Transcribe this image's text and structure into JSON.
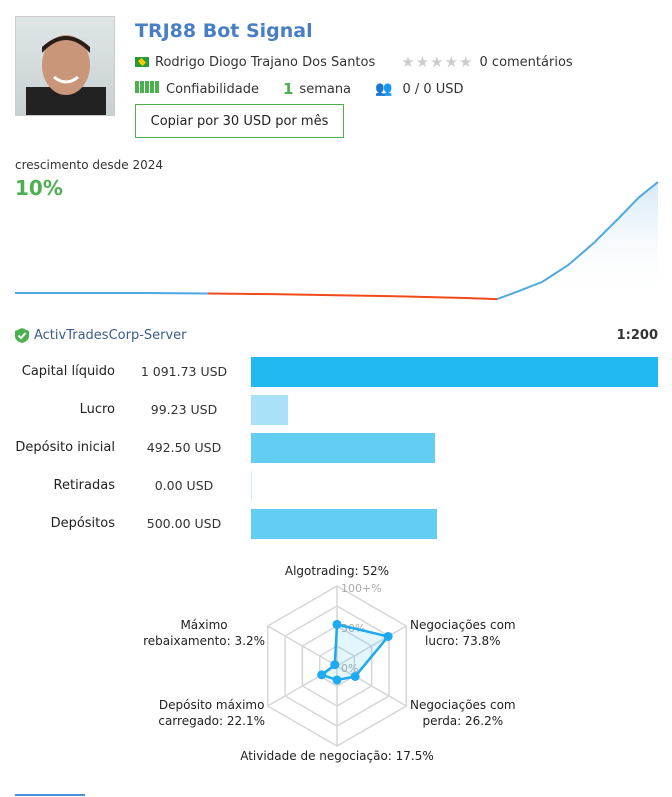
{
  "header": {
    "title": "TRJ88 Bot Signal",
    "author": "Rodrigo Diogo Trajano Dos Santos",
    "rating_stars": 0,
    "comments": "0 comentários",
    "reliability_label": "Confiabilidade",
    "weeks": "1",
    "weeks_unit": "semana",
    "subscribers": "0 / 0 USD",
    "copy_button": "Copiar por 30 USD por mês"
  },
  "growth": {
    "label": "crescimento desde 2024",
    "value": "10%"
  },
  "account": {
    "server": "ActivTradesCorp-Server",
    "leverage": "1:200"
  },
  "chart_data": [
    {
      "type": "line",
      "title": "crescimento desde 2024",
      "y_unit": "%",
      "x": [
        0,
        0.1,
        0.2,
        0.3,
        0.4,
        0.5,
        0.6,
        0.7,
        0.75,
        0.78,
        0.82,
        0.86,
        0.9,
        0.94,
        0.97,
        1.0
      ],
      "values": [
        0,
        0,
        0,
        -0.05,
        -0.1,
        -0.2,
        -0.3,
        -0.45,
        -0.55,
        0.1,
        1.0,
        2.5,
        4.5,
        6.8,
        8.6,
        10
      ],
      "ylim": [
        -1,
        10.5
      ]
    },
    {
      "type": "bar",
      "orientation": "horizontal",
      "categories": [
        "Capital líquido",
        "Lucro",
        "Depósito inicial",
        "Retiradas",
        "Depósitos"
      ],
      "values": [
        1091.73,
        99.23,
        492.5,
        0,
        500
      ],
      "labels": [
        "1 091.73 USD",
        "99.23 USD",
        "492.50 USD",
        "0.00 USD",
        "500.00 USD"
      ],
      "colors": [
        "#22b8f0",
        "#a9e2f8",
        "#63cdf4",
        "#63cdf4",
        "#63cdf4"
      ]
    },
    {
      "type": "radar",
      "axes": [
        {
          "label": "Algotrading: 52%",
          "value": 52
        },
        {
          "label": "Negociações com lucro: 73.8%",
          "value": 73.8
        },
        {
          "label": "Negociações com perda: 26.2%",
          "value": 26.2
        },
        {
          "label": "Atividade de negociação: 17.5%",
          "value": 17.5
        },
        {
          "label": "Depósito máximo carregado: 22.1%",
          "value": 22.1
        },
        {
          "label": "Máximo rebaixamento: 3.2%",
          "value": 3.2
        }
      ],
      "ticks": [
        "100+%",
        "50%",
        "0%"
      ],
      "range": [
        0,
        100
      ]
    }
  ]
}
